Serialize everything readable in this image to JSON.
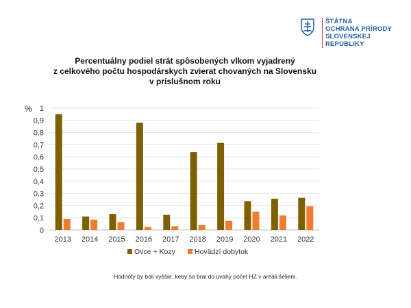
{
  "logo": {
    "lines": [
      "ŠTÁTNA",
      "OCHRANA PRÍRODY",
      "SLOVENSKEJ REPUBLIKY"
    ]
  },
  "chart_data": {
    "type": "bar",
    "title": "Percentuálny podiel strát spôsobených vlkom vyjadrený z celkového počtu hospodárskych zvierat chovaných na Slovensku v príslušnom roku",
    "title_lines": [
      "Percentuálny podiel strát spôsobených vlkom vyjadrený",
      "z celkového počtu hospodárskych zvierat chovaných na Slovensku",
      "v príslušnom roku"
    ],
    "ylabel": "%",
    "ylim": [
      0,
      1
    ],
    "yticks": [
      "0",
      "0,1",
      "0,2",
      "0,3",
      "0,4",
      "0,5",
      "0,6",
      "0,7",
      "0,8",
      "0,9",
      "1"
    ],
    "categories": [
      "2013",
      "2014",
      "2015",
      "2016",
      "2017",
      "2018",
      "2019",
      "2020",
      "2021",
      "2022"
    ],
    "series": [
      {
        "name": "Ovce + Kozy",
        "color": "#7f6000",
        "values": [
          0.95,
          0.11,
          0.13,
          0.88,
          0.125,
          0.64,
          0.715,
          0.235,
          0.255,
          0.265
        ]
      },
      {
        "name": "Hovädzí dobytok",
        "color": "#ed7d31",
        "values": [
          0.09,
          0.085,
          0.065,
          0.025,
          0.03,
          0.04,
          0.075,
          0.15,
          0.12,
          0.195
        ]
      }
    ],
    "grid": true,
    "legend": "bottom"
  },
  "note": "Hodnoty by boli vyššie, keby sa bral do úvahy počet HZ v areáli šeliem."
}
